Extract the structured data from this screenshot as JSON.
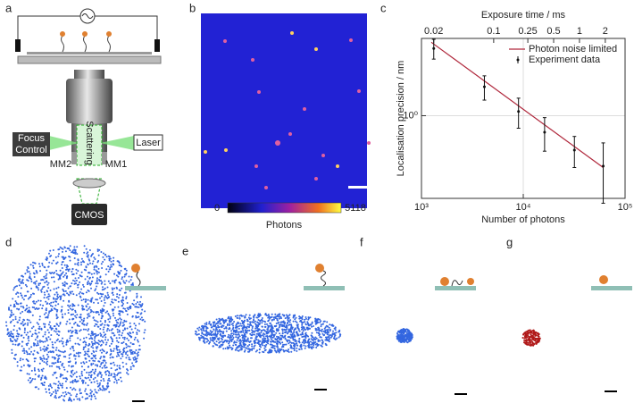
{
  "panel_labels": [
    "a",
    "b",
    "c",
    "d",
    "e",
    "f",
    "g"
  ],
  "diagram": {
    "focus_control": [
      "Focus",
      "Control"
    ],
    "laser": "Laser",
    "scattering": "Scattering",
    "mm2": "MM2",
    "mm1": "MM1",
    "cmos": "CMOS"
  },
  "image": {
    "colorbar": {
      "ticks": [
        0,
        5118
      ],
      "label": "Photons"
    }
  },
  "chart_data": {
    "type": "line",
    "xlabel": "Number of photons",
    "ylabel": "Localisation precision / nm",
    "x2label": "Exposure time / ms",
    "xscale": "log",
    "yscale": "log",
    "x2scale": "log",
    "xlim": [
      1000,
      100000
    ],
    "xticks": [
      {
        "value": 1000,
        "label": "10³"
      },
      {
        "value": 10000,
        "label": "10⁴"
      },
      {
        "value": 100000,
        "label": "10⁵"
      }
    ],
    "ylim": [
      0.27,
      3.4
    ],
    "yticks": [
      {
        "value": 1,
        "label": "10⁰"
      }
    ],
    "x2lim": [
      0.0144,
      3.4
    ],
    "x2ticks": [
      0.02,
      0.1,
      0.25,
      0.5,
      1,
      2
    ],
    "grid": true,
    "legend": "upper right",
    "series": [
      {
        "name": "Photon noise limited",
        "color": "#b0283c",
        "x": [
          1250,
          61000
        ],
        "values": [
          3.2,
          0.44
        ]
      },
      {
        "name": "Experiment data",
        "color": "#111111",
        "x": [
          1320,
          4150,
          8980,
          16200,
          31800,
          61000
        ],
        "values": [
          2.9,
          1.58,
          1.07,
          0.77,
          0.58,
          0.45
        ],
        "errors": [
          0.45,
          0.3,
          0.25,
          0.2,
          0.14,
          0.2
        ]
      }
    ]
  }
}
